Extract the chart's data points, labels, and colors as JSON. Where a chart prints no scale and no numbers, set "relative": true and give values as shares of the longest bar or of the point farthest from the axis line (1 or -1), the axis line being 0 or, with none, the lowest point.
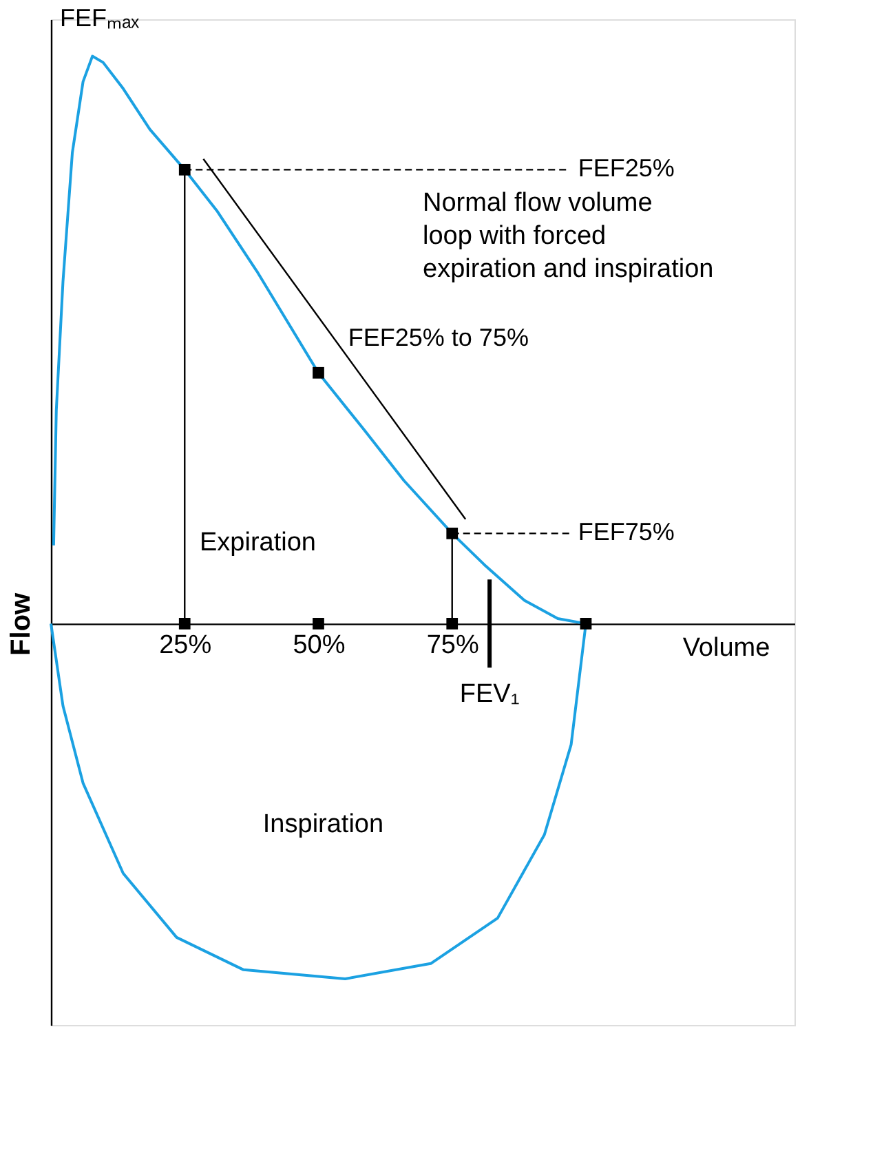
{
  "chart_data": {
    "type": "line",
    "title": "Normal flow volume\nloop with forced\nexpiration and inspiration",
    "xlabel": "Volume",
    "ylabel": "Flow",
    "relative": true,
    "grid": false,
    "xlim": [
      0,
      139
    ],
    "xticks": [
      {
        "value": 25,
        "label": "25%"
      },
      {
        "value": 50,
        "label": "50%"
      },
      {
        "value": 75,
        "label": "75%"
      }
    ],
    "series": [
      {
        "color": "#1ba1e2",
        "x": [
          0.5,
          1,
          2.25,
          4,
          6,
          7.75,
          9.75,
          13.5,
          18.5,
          25,
          31,
          38.5,
          50,
          58.5,
          66,
          75,
          81,
          88.5,
          94.75,
          100
        ],
        "values": [
          0.138,
          0.376,
          0.603,
          0.83,
          0.955,
          1.0,
          0.989,
          0.943,
          0.871,
          0.8,
          0.728,
          0.621,
          0.442,
          0.342,
          0.252,
          0.159,
          0.104,
          0.041,
          0.009,
          0
        ]
      },
      {
        "color": "#1ba1e2",
        "x": [
          0,
          2.25,
          6,
          13.5,
          23.5,
          36,
          55,
          71,
          83.5,
          92.25,
          97.25,
          100
        ],
        "values": [
          0,
          -0.145,
          -0.281,
          -0.44,
          -0.553,
          -0.61,
          -0.626,
          -0.599,
          -0.519,
          -0.372,
          -0.213,
          0
        ]
      },
      {
        "name": "FEF25%",
        "color": "#000000",
        "line_style": "dashed",
        "x": [
          25,
          97
        ],
        "values": [
          0.8,
          0.8
        ]
      },
      {
        "name": "FEF75%",
        "color": "#000000",
        "line_style": "dashed",
        "x": [
          75,
          97
        ],
        "values": [
          0.159,
          0.159
        ]
      },
      {
        "color": "#000000",
        "x": [
          25,
          25
        ],
        "values": [
          0,
          0.8
        ]
      },
      {
        "color": "#000000",
        "x": [
          75,
          75
        ],
        "values": [
          0,
          0.159
        ]
      },
      {
        "name": "FEF25% to 75%",
        "color": "#000000",
        "x": [
          28.5,
          77.5
        ],
        "values": [
          0.819,
          0.184
        ]
      },
      {
        "type": "scatter",
        "marker": "square",
        "color": "#000000",
        "x": [
          25,
          50,
          75,
          25,
          50,
          75,
          100
        ],
        "values": [
          0.8,
          0.442,
          0.159,
          0,
          0,
          0,
          0
        ]
      }
    ],
    "ref_lines": [
      {
        "axis": "x",
        "value": 82,
        "label": "FEV₁"
      }
    ],
    "annotations": [
      "FEFₘₐₓ",
      "Expiration",
      "Inspiration"
    ]
  }
}
